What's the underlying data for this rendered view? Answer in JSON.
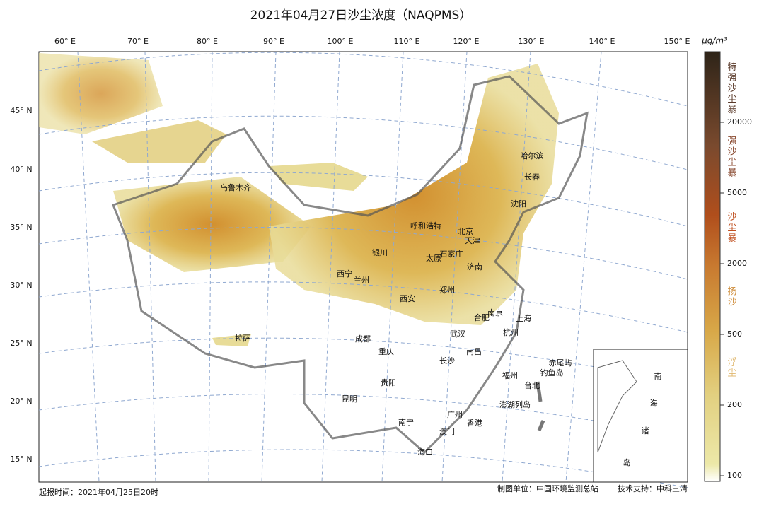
{
  "title": "2021年04月27日沙尘浓度（NAQPMS）",
  "unit": "μg/m³",
  "lon_labels": [
    "60° E",
    "70° E",
    "80° E",
    "90° E",
    "100° E",
    "110° E",
    "120° E",
    "130° E",
    "140° E",
    "150° E"
  ],
  "lat_labels": [
    "45° N",
    "40° N",
    "35° N",
    "30° N",
    "25° N",
    "20° N",
    "15° N"
  ],
  "cities": [
    "乌鲁木齐",
    "呼和浩特",
    "北京",
    "天津",
    "银川",
    "石家庄",
    "太原",
    "济南",
    "西宁",
    "兰州",
    "郑州",
    "西安",
    "南京",
    "合肥",
    "上海",
    "武汉",
    "杭州",
    "拉萨",
    "成都",
    "重庆",
    "南昌",
    "长沙",
    "福州",
    "贵阳",
    "台北",
    "昆明",
    "澎湖列岛",
    "南宁",
    "广州",
    "香港",
    "澳门",
    "海口",
    "哈尔滨",
    "长春",
    "沈阳",
    "赤尾屿",
    "钓鱼岛"
  ],
  "inset_labels": [
    "南",
    "海",
    "诸",
    "岛"
  ],
  "colorbar": {
    "ticks": [
      100,
      200,
      500,
      2000,
      5000,
      20000
    ],
    "levels": [
      "浮尘",
      "扬沙",
      "沙尘暴",
      "强沙尘暴",
      "特强沙尘暴"
    ]
  },
  "footer": {
    "issued": "起报时间：2021年04月25日20时",
    "producer": "制图单位：中国环境监测总站",
    "support": "技术支持：中科三清"
  }
}
